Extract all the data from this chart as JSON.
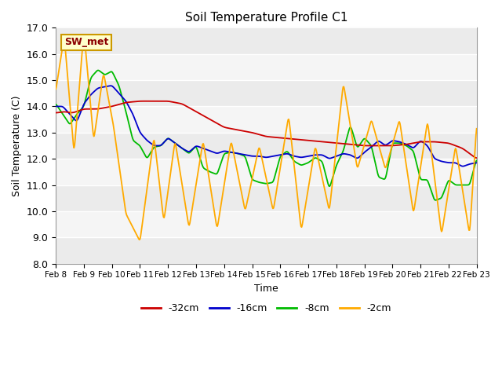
{
  "title": "Soil Temperature Profile C1",
  "xlabel": "Time",
  "ylabel": "Soil Temperature (C)",
  "ylim": [
    8.0,
    17.0
  ],
  "yticks": [
    8.0,
    9.0,
    10.0,
    11.0,
    12.0,
    13.0,
    14.0,
    15.0,
    16.0,
    17.0
  ],
  "label_box": "SW_met",
  "date_labels": [
    "Feb 8",
    "Feb 9",
    "Feb 10",
    "Feb 11",
    "Feb 12",
    "Feb 13",
    "Feb 14",
    "Feb 15",
    "Feb 16",
    "Feb 17",
    "Feb 18",
    "Feb 19",
    "Feb 20",
    "Feb 21",
    "Feb 22",
    "Feb 23"
  ],
  "legend_labels": [
    "-32cm",
    "-16cm",
    "-8cm",
    "-2cm"
  ],
  "line_colors": [
    "#cc0000",
    "#0000cc",
    "#00bb00",
    "#ffaa00"
  ],
  "background_color": "#ffffff",
  "plot_bg_color": "#ebebeb",
  "band_light_color": "#f5f5f5",
  "band_dark_color": "#d8d8d8",
  "n_points": 720,
  "time_days": 15
}
